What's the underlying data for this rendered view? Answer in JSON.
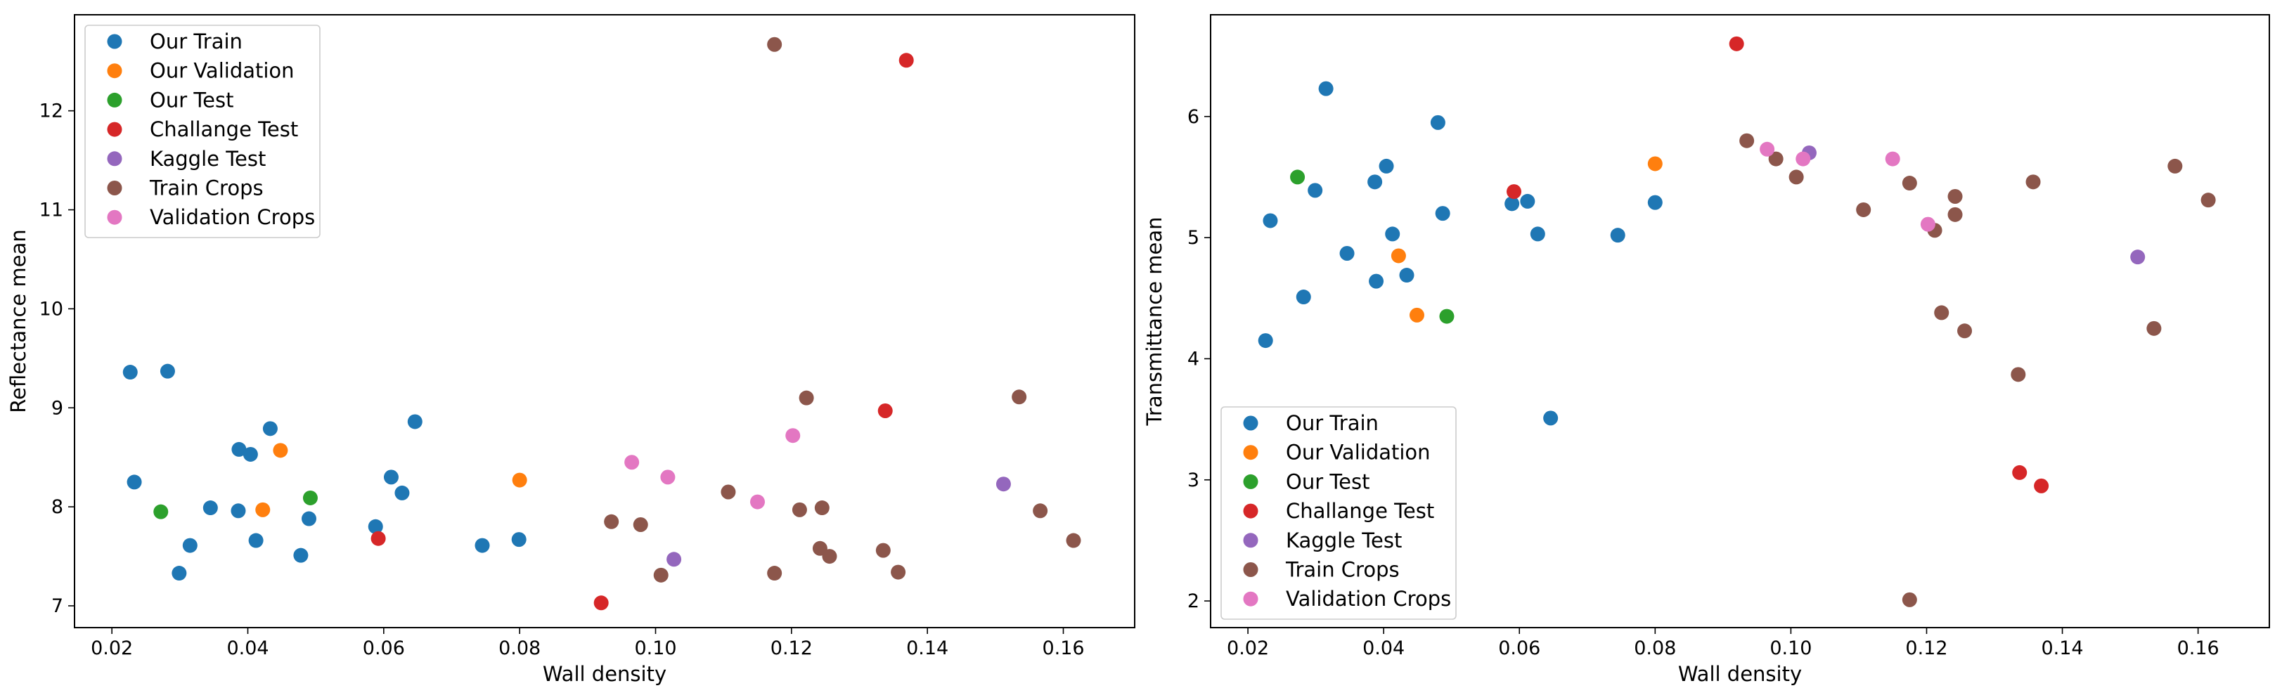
{
  "chart_data": [
    {
      "type": "scatter",
      "title": "",
      "xlabel": "Wall density",
      "ylabel": "Reflectance mean",
      "xlim": [
        0.0145,
        0.1705
      ],
      "ylim": [
        6.78,
        12.97
      ],
      "xticks": [
        0.02,
        0.04,
        0.06,
        0.08,
        0.1,
        0.12,
        0.14,
        0.16
      ],
      "xtick_labels": [
        "0.02",
        "0.04",
        "0.06",
        "0.08",
        "0.10",
        "0.12",
        "0.14",
        "0.16"
      ],
      "yticks": [
        7,
        8,
        9,
        10,
        11,
        12
      ],
      "ytick_labels": [
        "7",
        "8",
        "9",
        "10",
        "11",
        "12"
      ],
      "legend_position": "upper-left",
      "series": [
        {
          "name": "Our Train",
          "color": "#1f77b4",
          "points": [
            [
              0.0227,
              9.36
            ],
            [
              0.0282,
              9.37
            ],
            [
              0.0233,
              8.25
            ],
            [
              0.0299,
              7.33
            ],
            [
              0.0315,
              7.61
            ],
            [
              0.0345,
              7.99
            ],
            [
              0.0387,
              8.58
            ],
            [
              0.0386,
              7.96
            ],
            [
              0.0404,
              8.53
            ],
            [
              0.0412,
              7.66
            ],
            [
              0.0433,
              8.79
            ],
            [
              0.0478,
              7.51
            ],
            [
              0.049,
              7.88
            ],
            [
              0.0588,
              7.8
            ],
            [
              0.0611,
              8.3
            ],
            [
              0.0627,
              8.14
            ],
            [
              0.0646,
              8.86
            ],
            [
              0.0745,
              7.61
            ],
            [
              0.0799,
              7.67
            ]
          ]
        },
        {
          "name": "Our Validation",
          "color": "#ff7f0e",
          "points": [
            [
              0.0448,
              8.57
            ],
            [
              0.0422,
              7.97
            ],
            [
              0.08,
              8.27
            ]
          ]
        },
        {
          "name": "Our Test",
          "color": "#2ca02c",
          "points": [
            [
              0.0272,
              7.95
            ],
            [
              0.0492,
              8.09
            ]
          ]
        },
        {
          "name": "Challange Test",
          "color": "#d62728",
          "points": [
            [
              0.0592,
              7.68
            ],
            [
              0.092,
              7.03
            ],
            [
              0.1338,
              8.97
            ],
            [
              0.1369,
              12.51
            ]
          ]
        },
        {
          "name": "Kaggle Test",
          "color": "#9467bd",
          "points": [
            [
              0.1027,
              7.47
            ],
            [
              0.1512,
              8.23
            ]
          ]
        },
        {
          "name": "Train Crops",
          "color": "#8c564b",
          "points": [
            [
              0.0935,
              7.85
            ],
            [
              0.0978,
              7.82
            ],
            [
              0.1008,
              7.31
            ],
            [
              0.1107,
              8.15
            ],
            [
              0.1175,
              7.33
            ],
            [
              0.1175,
              12.67
            ],
            [
              0.1212,
              7.97
            ],
            [
              0.1222,
              9.1
            ],
            [
              0.1242,
              7.58
            ],
            [
              0.1245,
              7.99
            ],
            [
              0.1256,
              7.5
            ],
            [
              0.1335,
              7.56
            ],
            [
              0.1357,
              7.34
            ],
            [
              0.1535,
              9.11
            ],
            [
              0.1566,
              7.96
            ],
            [
              0.1615,
              7.66
            ]
          ]
        },
        {
          "name": "Validation Crops",
          "color": "#e377c2",
          "points": [
            [
              0.0965,
              8.45
            ],
            [
              0.1018,
              8.3
            ],
            [
              0.115,
              8.05
            ],
            [
              0.1202,
              8.72
            ]
          ]
        }
      ]
    },
    {
      "type": "scatter",
      "title": "",
      "xlabel": "Wall density",
      "ylabel": "Transmittance mean",
      "xlim": [
        0.0145,
        0.1705
      ],
      "ylim": [
        1.78,
        6.84
      ],
      "xticks": [
        0.02,
        0.04,
        0.06,
        0.08,
        0.1,
        0.12,
        0.14,
        0.16
      ],
      "xtick_labels": [
        "0.02",
        "0.04",
        "0.06",
        "0.08",
        "0.10",
        "0.12",
        "0.14",
        "0.16"
      ],
      "yticks": [
        2,
        3,
        4,
        5,
        6
      ],
      "ytick_labels": [
        "2",
        "3",
        "4",
        "5",
        "6"
      ],
      "legend_position": "lower-left",
      "series": [
        {
          "name": "Our Train",
          "color": "#1f77b4",
          "points": [
            [
              0.0226,
              4.15
            ],
            [
              0.0233,
              5.14
            ],
            [
              0.0282,
              4.51
            ],
            [
              0.0299,
              5.39
            ],
            [
              0.0315,
              6.23
            ],
            [
              0.0346,
              4.87
            ],
            [
              0.0387,
              5.46
            ],
            [
              0.0389,
              4.64
            ],
            [
              0.0404,
              5.59
            ],
            [
              0.0413,
              5.03
            ],
            [
              0.0434,
              4.69
            ],
            [
              0.048,
              5.95
            ],
            [
              0.0487,
              5.2
            ],
            [
              0.0589,
              5.28
            ],
            [
              0.0612,
              5.3
            ],
            [
              0.0627,
              5.03
            ],
            [
              0.0646,
              3.51
            ],
            [
              0.0745,
              5.02
            ],
            [
              0.08,
              5.29
            ]
          ]
        },
        {
          "name": "Our Validation",
          "color": "#ff7f0e",
          "points": [
            [
              0.0422,
              4.85
            ],
            [
              0.0449,
              4.36
            ],
            [
              0.08,
              5.61
            ]
          ]
        },
        {
          "name": "Our Test",
          "color": "#2ca02c",
          "points": [
            [
              0.0273,
              5.5
            ],
            [
              0.0493,
              4.35
            ]
          ]
        },
        {
          "name": "Challange Test",
          "color": "#d62728",
          "points": [
            [
              0.0592,
              5.38
            ],
            [
              0.092,
              6.6
            ],
            [
              0.1337,
              3.06
            ],
            [
              0.1369,
              2.95
            ]
          ]
        },
        {
          "name": "Kaggle Test",
          "color": "#9467bd",
          "points": [
            [
              0.1027,
              5.7
            ],
            [
              0.1511,
              4.84
            ]
          ]
        },
        {
          "name": "Train Crops",
          "color": "#8c564b",
          "points": [
            [
              0.0935,
              5.8
            ],
            [
              0.0978,
              5.65
            ],
            [
              0.1008,
              5.5
            ],
            [
              0.1107,
              5.23
            ],
            [
              0.1175,
              5.45
            ],
            [
              0.1175,
              2.01
            ],
            [
              0.1212,
              5.06
            ],
            [
              0.1222,
              4.38
            ],
            [
              0.1242,
              5.34
            ],
            [
              0.1242,
              5.19
            ],
            [
              0.1256,
              4.23
            ],
            [
              0.1335,
              3.87
            ],
            [
              0.1357,
              5.46
            ],
            [
              0.1535,
              4.25
            ],
            [
              0.1566,
              5.59
            ],
            [
              0.1615,
              5.31
            ]
          ]
        },
        {
          "name": "Validation Crops",
          "color": "#e377c2",
          "points": [
            [
              0.0965,
              5.73
            ],
            [
              0.1018,
              5.65
            ],
            [
              0.115,
              5.65
            ],
            [
              0.1202,
              5.11
            ]
          ]
        }
      ]
    }
  ]
}
